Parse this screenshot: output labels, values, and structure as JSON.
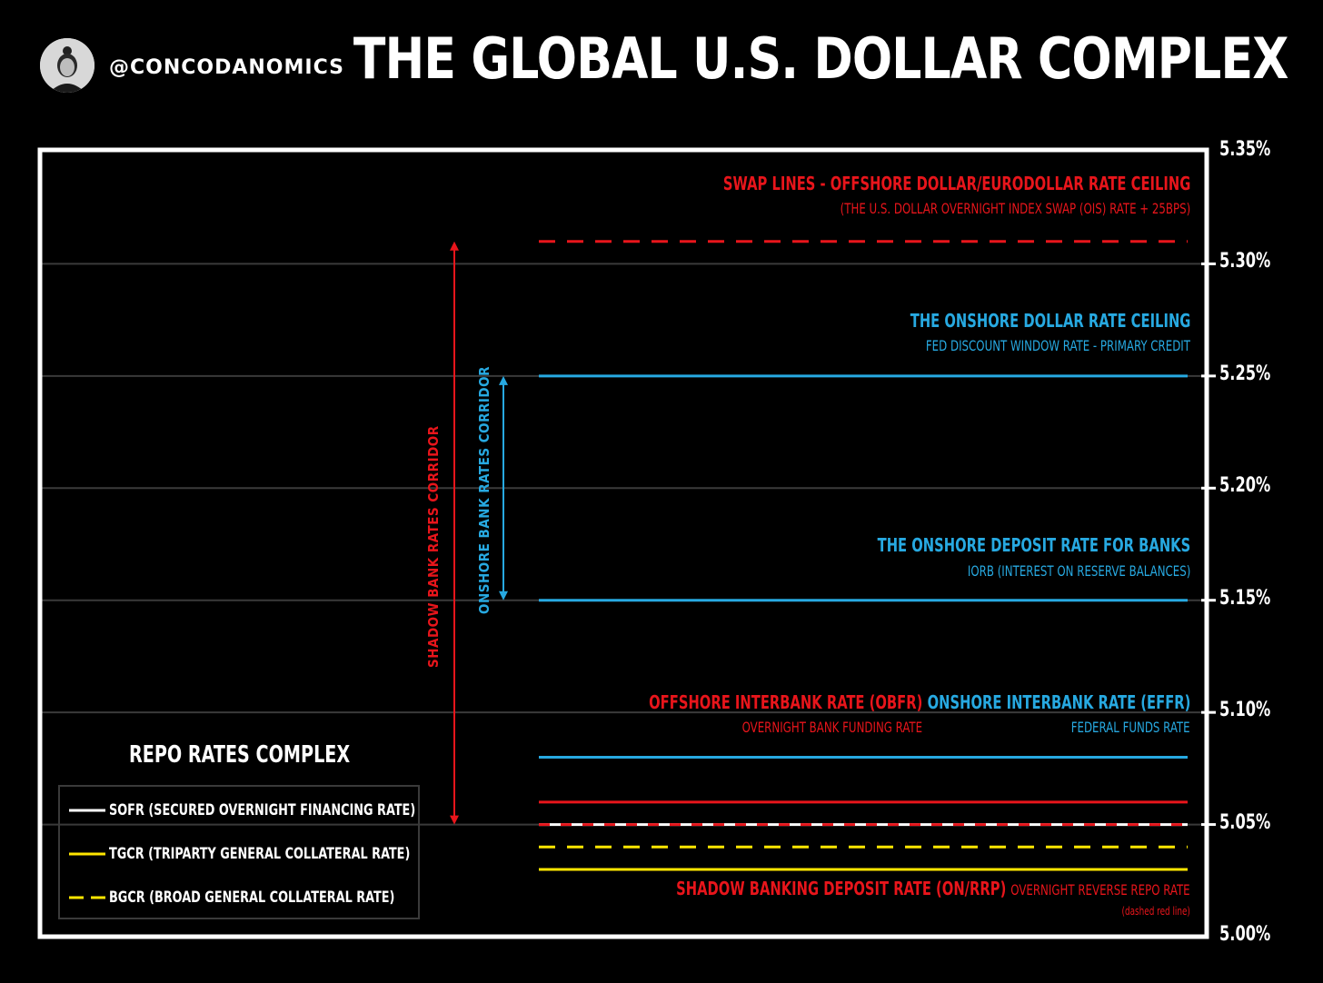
{
  "header": {
    "handle": "@CONCODANOMICS",
    "title": "THE GLOBAL U.S. DOLLAR COMPLEX"
  },
  "colors": {
    "red": "#e8151b",
    "blue": "#27a9e1",
    "yellow": "#ffe600",
    "white": "#ffffff",
    "grid": "#3a3a3a"
  },
  "chart_data": {
    "type": "line",
    "ylim": [
      5.0,
      5.35
    ],
    "yticks": [
      "5.35%",
      "5.30%",
      "5.25%",
      "5.20%",
      "5.15%",
      "5.10%",
      "5.05%",
      "5.00%"
    ],
    "ytick_values": [
      5.35,
      5.3,
      5.25,
      5.2,
      5.15,
      5.1,
      5.05,
      5.0
    ],
    "grid": true,
    "series": [
      {
        "name": "Swap lines - offshore dollar/eurodollar rate ceiling",
        "y": 5.31,
        "color": "#e8151b",
        "style": "dashed"
      },
      {
        "name": "Fed discount window rate - primary credit",
        "y": 5.25,
        "color": "#27a9e1",
        "style": "solid"
      },
      {
        "name": "IORB (interest on reserve balances)",
        "y": 5.15,
        "color": "#27a9e1",
        "style": "solid"
      },
      {
        "name": "Federal funds rate",
        "y": 5.08,
        "color": "#27a9e1",
        "style": "solid"
      },
      {
        "name": "Overnight bank funding rate",
        "y": 5.06,
        "color": "#e8151b",
        "style": "solid"
      },
      {
        "name": "SOFR",
        "y": 5.05,
        "color": "#ffffff",
        "style": "solid"
      },
      {
        "name": "ON/RRP",
        "y": 5.05,
        "color": "#e8151b",
        "style": "dashed"
      },
      {
        "name": "BGCR",
        "y": 5.04,
        "color": "#ffe600",
        "style": "dashed"
      },
      {
        "name": "TGCR",
        "y": 5.03,
        "color": "#ffe600",
        "style": "solid"
      }
    ],
    "corridors": [
      {
        "label": "SHADOW BANK RATES CORRIDOR",
        "from": 5.05,
        "to": 5.31,
        "color": "#e8151b"
      },
      {
        "label": "ONSHORE BANK RATES CORRIDOR",
        "from": 5.15,
        "to": 5.25,
        "color": "#27a9e1"
      }
    ]
  },
  "annotations": {
    "swap_title": "SWAP LINES - OFFSHORE DOLLAR/EURODOLLAR RATE CEILING",
    "swap_sub": "(THE U.S. DOLLAR OVERNIGHT INDEX SWAP (OIS) RATE + 25BPS)",
    "ceiling_title": "THE ONSHORE DOLLAR RATE CEILING",
    "ceiling_sub": "FED DISCOUNT WINDOW RATE - PRIMARY CREDIT",
    "deposit_title": "THE ONSHORE DEPOSIT RATE FOR BANKS",
    "deposit_sub": "IORB (INTEREST ON RESERVE BALANCES)",
    "obfr_title": "OFFSHORE INTERBANK RATE (OBFR)",
    "obfr_sub": "OVERNIGHT BANK FUNDING RATE",
    "effr_title": "ONSHORE INTERBANK RATE (EFFR)",
    "effr_sub": "FEDERAL FUNDS RATE",
    "rrp_title": "SHADOW BANKING DEPOSIT RATE (ON/RRP)",
    "rrp_sub": "OVERNIGHT REVERSE REPO RATE",
    "rrp_note": "(dashed red line)"
  },
  "legend": {
    "title": "REPO RATES COMPLEX",
    "items": [
      {
        "label": "SOFR (SECURED OVERNIGHT FINANCING RATE)",
        "color": "#ffffff",
        "style": "solid"
      },
      {
        "label": "TGCR (TRIPARTY GENERAL COLLATERAL RATE)",
        "color": "#ffe600",
        "style": "solid"
      },
      {
        "label": "BGCR (BROAD GENERAL COLLATERAL RATE)",
        "color": "#ffe600",
        "style": "dashed"
      }
    ]
  }
}
